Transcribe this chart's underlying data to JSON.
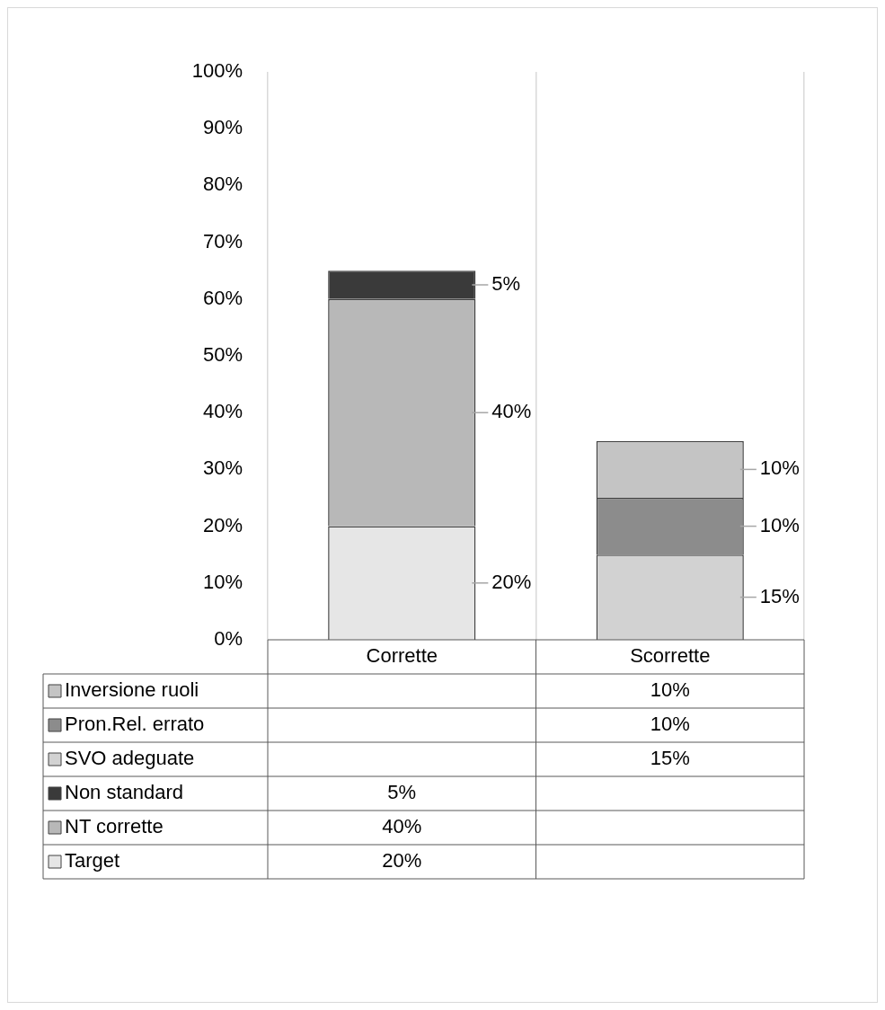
{
  "chart_data": {
    "type": "bar",
    "stacked": true,
    "categories": [
      "Corrette",
      "Scorrette"
    ],
    "series": [
      {
        "name": "Target",
        "color": "#e6e6e6",
        "values": [
          20,
          null
        ],
        "value_labels": [
          "20%",
          null
        ]
      },
      {
        "name": "NT corrette",
        "color": "#b8b8b8",
        "values": [
          40,
          null
        ],
        "value_labels": [
          "40%",
          null
        ]
      },
      {
        "name": "Non standard",
        "color": "#3a3a3a",
        "values": [
          5,
          null
        ],
        "value_labels": [
          "5%",
          null
        ]
      },
      {
        "name": "SVO adeguate",
        "color": "#d2d2d2",
        "values": [
          null,
          15
        ],
        "value_labels": [
          null,
          "15%"
        ]
      },
      {
        "name": "Pron.Rel. errato",
        "color": "#8c8c8c",
        "values": [
          null,
          10
        ],
        "value_labels": [
          null,
          "10%"
        ]
      },
      {
        "name": "Inversione ruoli",
        "color": "#c4c4c4",
        "values": [
          null,
          10
        ],
        "value_labels": [
          null,
          "10%"
        ]
      }
    ],
    "ylim": [
      0,
      100
    ],
    "yticks": [
      {
        "value": 0,
        "label": "0%"
      },
      {
        "value": 10,
        "label": "10%"
      },
      {
        "value": 20,
        "label": "20%"
      },
      {
        "value": 30,
        "label": "30%"
      },
      {
        "value": 40,
        "label": "40%"
      },
      {
        "value": 50,
        "label": "50%"
      },
      {
        "value": 60,
        "label": "60%"
      },
      {
        "value": 70,
        "label": "70%"
      },
      {
        "value": 80,
        "label": "80%"
      },
      {
        "value": 90,
        "label": "90%"
      },
      {
        "value": 100,
        "label": "100%"
      }
    ],
    "grid": "x",
    "legend": "bottom"
  }
}
